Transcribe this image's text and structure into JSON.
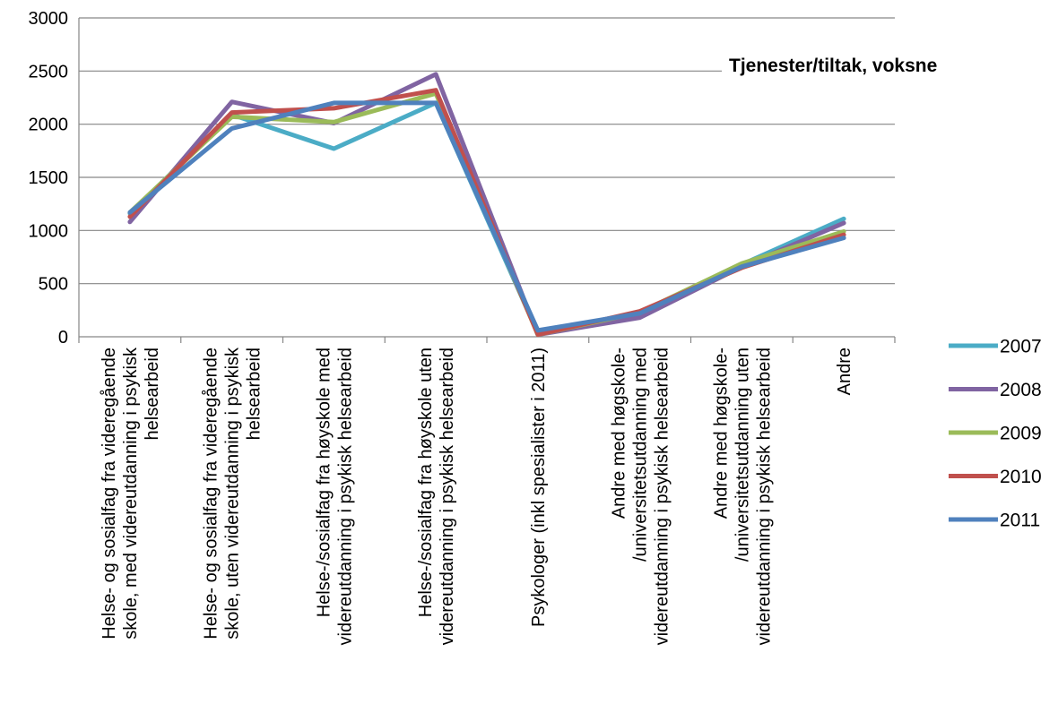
{
  "chart_data": {
    "type": "line",
    "title": "Tjenester/tiltak, voksne",
    "ylim": [
      0,
      3000
    ],
    "yticks": [
      0,
      500,
      1000,
      1500,
      2000,
      2500,
      3000
    ],
    "grid": true,
    "legend_position": "right",
    "categories": [
      [
        "Helse- og sosialfag fra videregående",
        "skole, med videreutdanning i psykisk",
        "helsearbeid"
      ],
      [
        "Helse- og sosialfag fra videregående",
        "skole, uten videreutdanning i psykisk",
        "helsearbeid"
      ],
      [
        "Helse-/sosialfag fra høyskole med",
        "videreutdanning i psykisk helsearbeid"
      ],
      [
        "Helse-/sosialfag fra høyskole uten",
        "videreutdanning i psykisk helsearbeid"
      ],
      [
        "Psykologer (inkl spesialister i 2011)"
      ],
      [
        "Andre med høgskole-",
        "/universitetsutdanning med",
        "videreutdanning i psykisk helsearbeid"
      ],
      [
        "Andre med høgskole-",
        "/universitetsutdanning uten",
        "videreutdanning i psykisk helsearbeid"
      ],
      [
        "Andre"
      ]
    ],
    "series": [
      {
        "name": "2007",
        "color": "#4bacc6",
        "values": [
          1160,
          2090,
          1770,
          2200,
          30,
          210,
          680,
          1110
        ]
      },
      {
        "name": "2008",
        "color": "#8064a2",
        "values": [
          1080,
          2210,
          2010,
          2470,
          20,
          180,
          660,
          1070
        ]
      },
      {
        "name": "2009",
        "color": "#9bbb59",
        "values": [
          1170,
          2070,
          2020,
          2290,
          20,
          230,
          690,
          990
        ]
      },
      {
        "name": "2010",
        "color": "#c0504d",
        "values": [
          1130,
          2110,
          2150,
          2320,
          20,
          240,
          650,
          960
        ]
      },
      {
        "name": "2011",
        "color": "#4f81bd",
        "values": [
          1170,
          1960,
          2200,
          2200,
          60,
          220,
          660,
          930
        ]
      }
    ]
  }
}
